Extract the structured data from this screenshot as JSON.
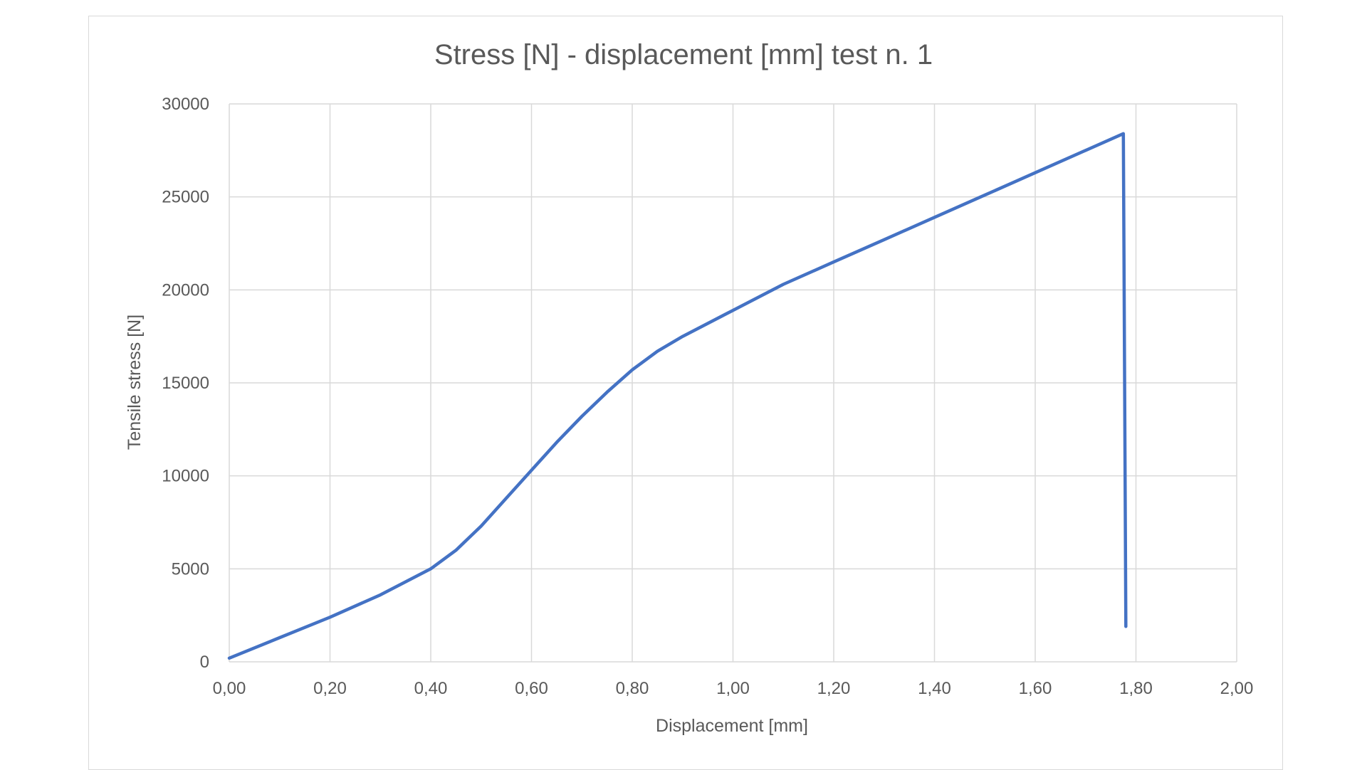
{
  "chart_data": {
    "type": "line",
    "title": "Stress [N] - displacement [mm] test n. 1",
    "xlabel": "Displacement [mm]",
    "ylabel": "Tensile stress [N]",
    "xlim": [
      0,
      2
    ],
    "ylim": [
      0,
      30000
    ],
    "x_ticks": [
      "0,00",
      "0,20",
      "0,40",
      "0,60",
      "0,80",
      "1,00",
      "1,20",
      "1,40",
      "1,60",
      "1,80",
      "2,00"
    ],
    "y_ticks": [
      "0",
      "5000",
      "10000",
      "15000",
      "20000",
      "25000",
      "30000"
    ],
    "grid": true,
    "legend": "none",
    "series": [
      {
        "color": "#4472c4",
        "x": [
          0.0,
          0.1,
          0.2,
          0.3,
          0.4,
          0.45,
          0.5,
          0.55,
          0.6,
          0.65,
          0.7,
          0.75,
          0.8,
          0.85,
          0.9,
          1.0,
          1.1,
          1.2,
          1.3,
          1.4,
          1.5,
          1.6,
          1.7,
          1.775,
          1.78
        ],
        "y": [
          200,
          1300,
          2400,
          3600,
          5000,
          6000,
          7300,
          8800,
          10300,
          11800,
          13200,
          14500,
          15700,
          16700,
          17500,
          18900,
          20300,
          21500,
          22700,
          23900,
          25100,
          26300,
          27500,
          28400,
          1900
        ]
      }
    ]
  }
}
